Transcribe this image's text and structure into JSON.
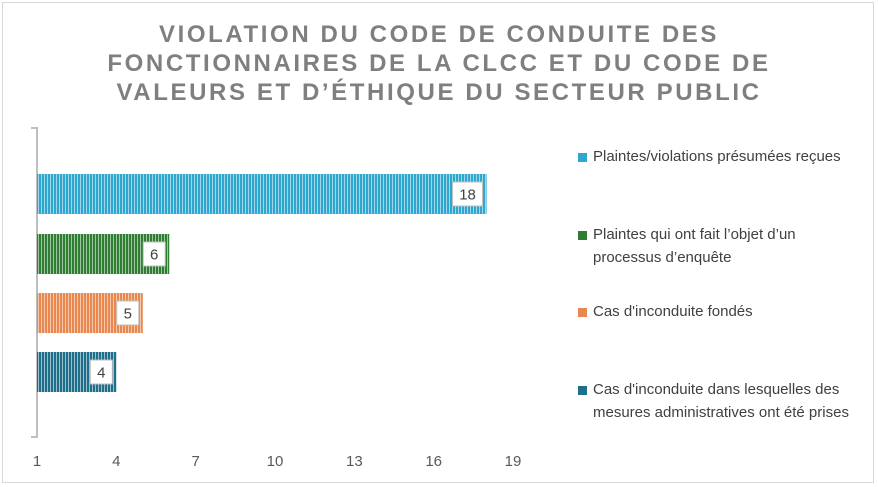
{
  "chart_data": {
    "type": "bar",
    "orientation": "horizontal",
    "title": "VIOLATION DU CODE DE CONDUITE DES FONCTIONNAIRES DE LA CLCC ET DU CODE DE VALEURS ET D’ÉTHIQUE DU SECTEUR PUBLIC",
    "series": [
      {
        "name": "Plaintes/violations présumées reçues",
        "value": 18,
        "color": "#2ea7cf"
      },
      {
        "name": "Plaintes qui ont fait l’objet d’un processus d’enquête",
        "value": 6,
        "color": "#2e7d32"
      },
      {
        "name": "Cas d'inconduite fondés",
        "value": 5,
        "color": "#e8884f"
      },
      {
        "name": "Cas d'inconduite dans lesquelles des mesures administratives ont été prises",
        "value": 4,
        "color": "#1f6f8b"
      }
    ],
    "xlim": [
      1,
      19
    ],
    "xticks": [
      "1",
      "4",
      "7",
      "10",
      "13",
      "16",
      "19"
    ],
    "grid": false,
    "legend_position": "right"
  }
}
